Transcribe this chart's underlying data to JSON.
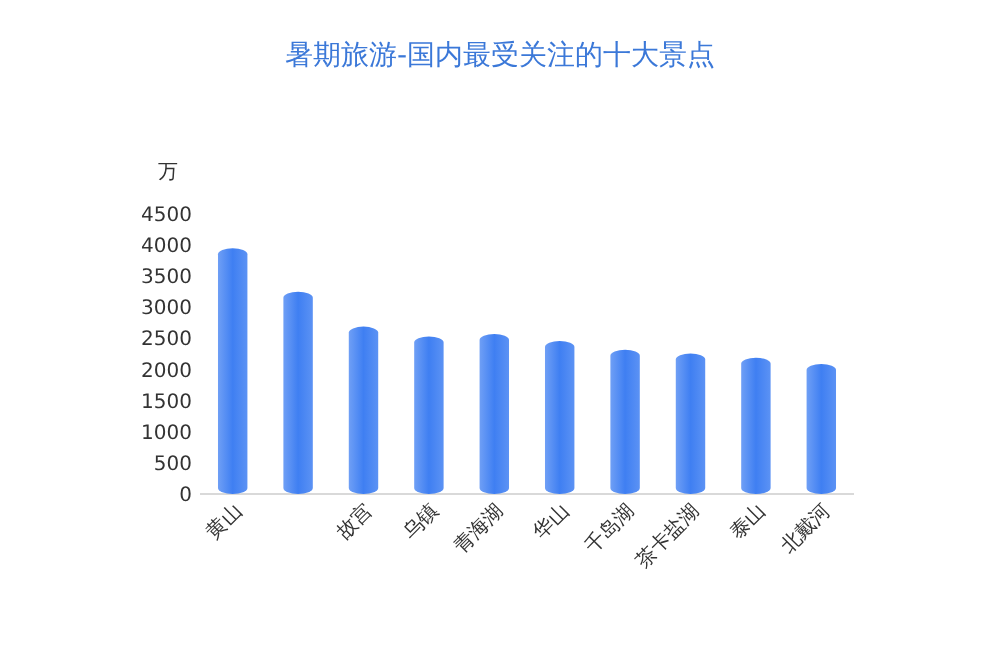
{
  "chart_data": {
    "type": "bar",
    "title": "暑期旅游-国内最受关注的十大景点",
    "ylabel": "万",
    "categories": [
      "黄山",
      null,
      "故宫",
      "乌镇",
      "青海湖",
      "华山",
      "千岛湖",
      "茶卡盐湖",
      "泰山",
      "北戴河"
    ],
    "values": [
      3950,
      3250,
      2690,
      2530,
      2570,
      2460,
      2320,
      2260,
      2190,
      2090
    ],
    "color": "#3f7ff2",
    "ylim": [
      0,
      4500
    ],
    "yticks": [
      0,
      500,
      1000,
      1500,
      2000,
      2500,
      3000,
      3500,
      4000,
      4500
    ],
    "grid": false
  }
}
